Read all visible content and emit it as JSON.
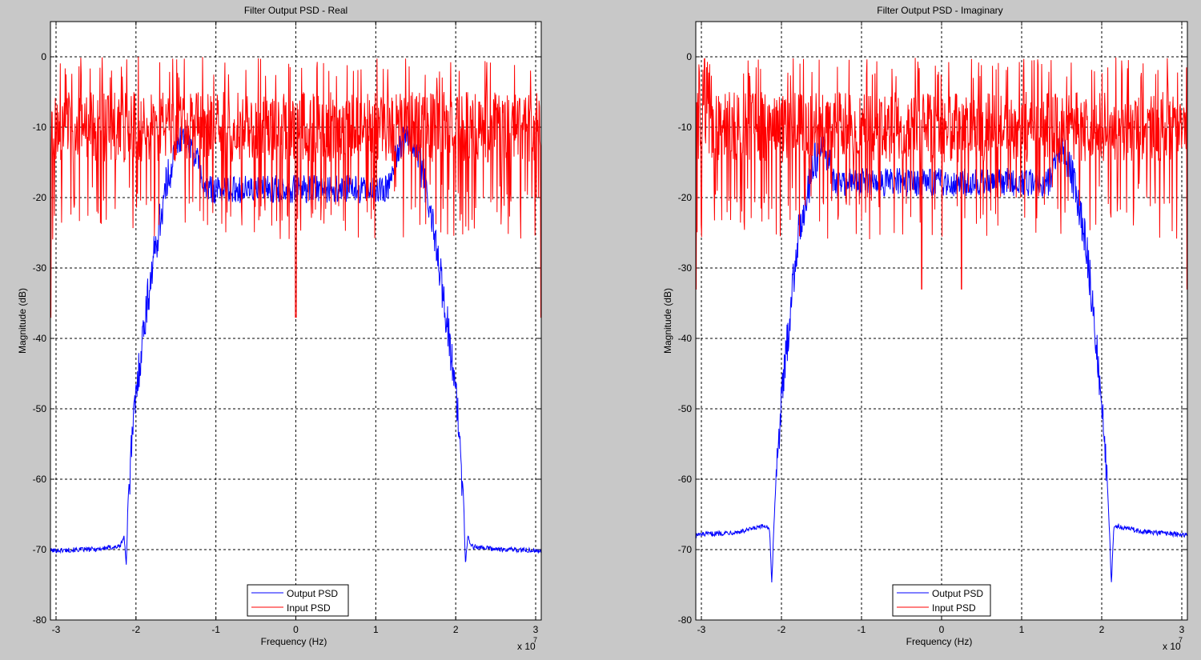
{
  "figure": {
    "background": "#c8c8c8",
    "plot_background": "#ffffff"
  },
  "chart_data": [
    {
      "type": "line",
      "title": "Filter Output PSD - Real",
      "xlabel": "Frequency (Hz)",
      "ylabel": "Magnitude (dB)",
      "x_multiplier_label": "x 10",
      "x_multiplier_exp": "7",
      "xlim": [
        -3.07,
        3.07
      ],
      "ylim": [
        -80,
        5
      ],
      "xticks": [
        -3,
        -2,
        -1,
        0,
        1,
        2,
        3
      ],
      "xtick_labels": [
        "-3",
        "-2",
        "-1",
        "0",
        "1",
        "2",
        "3"
      ],
      "yticks": [
        0,
        -10,
        -20,
        -30,
        -40,
        -50,
        -60,
        -70,
        -80
      ],
      "ytick_labels": [
        "0",
        "-10",
        "-20",
        "-30",
        "-40",
        "-50",
        "-60",
        "-70",
        "-80"
      ],
      "grid": true,
      "legend_position": "bottom-center",
      "series": [
        {
          "name": "Output PSD",
          "color": "#0000ff",
          "x": [
            -3.07,
            -2.5,
            -2.2,
            -2.15,
            -2.12,
            -2.1,
            -2.05,
            -2.0,
            -1.95,
            -1.9,
            -1.85,
            -1.8,
            -1.7,
            -1.6,
            -1.5,
            -1.4,
            -1.3,
            -1.2,
            -1.15,
            1.15,
            1.2,
            1.3,
            1.4,
            1.5,
            1.6,
            1.7,
            1.8,
            1.85,
            1.9,
            1.95,
            2.0,
            2.05,
            2.1,
            2.12,
            2.15,
            2.2,
            2.5,
            3.07
          ],
          "y": [
            -70,
            -69.8,
            -69.4,
            -68,
            -72,
            -63,
            -53,
            -47,
            -42,
            -37,
            -33,
            -29,
            -22,
            -16,
            -12,
            -10,
            -12,
            -15,
            -18,
            -18,
            -15,
            -12,
            -10,
            -12,
            -16,
            -22,
            -29,
            -33,
            -37,
            -42,
            -47,
            -53,
            -63,
            -72,
            -68,
            -69.4,
            -69.8,
            -70
          ]
        },
        {
          "name": "Input PSD",
          "color": "#ff0000",
          "mean_db": -10,
          "band_db": [
            -26,
            0
          ],
          "notches": [
            {
              "x": -3.07,
              "y": -37
            },
            {
              "x": 0.0,
              "y": -37
            },
            {
              "x": 3.07,
              "y": -37
            }
          ]
        }
      ]
    },
    {
      "type": "line",
      "title": "Filter Output PSD - Imaginary",
      "xlabel": "Frequency (Hz)",
      "ylabel": "Magnitude (dB)",
      "x_multiplier_label": "x 10",
      "x_multiplier_exp": "7",
      "xlim": [
        -3.07,
        3.07
      ],
      "ylim": [
        -80,
        5
      ],
      "xticks": [
        -3,
        -2,
        -1,
        0,
        1,
        2,
        3
      ],
      "xtick_labels": [
        "-3",
        "-2",
        "-1",
        "0",
        "1",
        "2",
        "3"
      ],
      "yticks": [
        0,
        -10,
        -20,
        -30,
        -40,
        -50,
        -60,
        -70,
        -80
      ],
      "ytick_labels": [
        "0",
        "-10",
        "-20",
        "-30",
        "-40",
        "-50",
        "-60",
        "-70",
        "-80"
      ],
      "grid": true,
      "legend_position": "bottom-center",
      "series": [
        {
          "name": "Output PSD",
          "color": "#0000ff",
          "x": [
            -3.07,
            -2.5,
            -2.2,
            -2.15,
            -2.12,
            -2.1,
            -2.05,
            -2.0,
            -1.95,
            -1.9,
            -1.85,
            -1.8,
            -1.7,
            -1.6,
            -1.5,
            -1.4,
            -1.35,
            1.35,
            1.4,
            1.5,
            1.6,
            1.7,
            1.8,
            1.85,
            1.9,
            1.95,
            2.0,
            2.05,
            2.1,
            2.12,
            2.15,
            2.2,
            2.5,
            3.07
          ],
          "y": [
            -67.8,
            -67.3,
            -66.5,
            -66.8,
            -75,
            -68,
            -55,
            -48,
            -42,
            -36,
            -30,
            -25,
            -19,
            -14,
            -12,
            -14,
            -17,
            -17,
            -14,
            -12,
            -14,
            -19,
            -25,
            -30,
            -36,
            -42,
            -48,
            -55,
            -68,
            -75,
            -66.8,
            -66.5,
            -67.3,
            -67.8
          ]
        },
        {
          "name": "Input PSD",
          "color": "#ff0000",
          "mean_db": -10,
          "band_db": [
            -26,
            0
          ],
          "notches": [
            {
              "x": -3.07,
              "y": -33
            },
            {
              "x": -0.25,
              "y": -33
            },
            {
              "x": 0.25,
              "y": -33
            },
            {
              "x": 3.07,
              "y": -33
            }
          ]
        }
      ]
    }
  ]
}
